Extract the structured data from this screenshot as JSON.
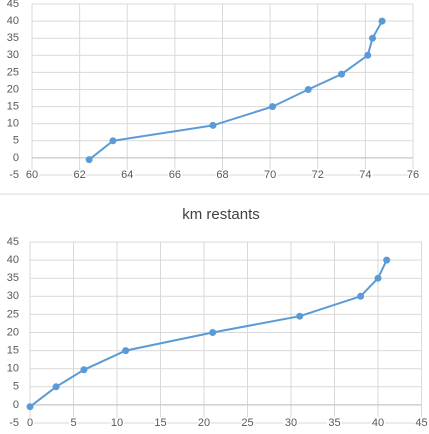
{
  "chart_data": [
    {
      "type": "line",
      "color": "#5b9bd5",
      "grid": true,
      "x": [
        62.4,
        63.4,
        67.6,
        70.1,
        71.6,
        73.0,
        74.1,
        74.3,
        74.7
      ],
      "values": [
        -0.5,
        5,
        9.5,
        15,
        20,
        24.5,
        30,
        35,
        40
      ],
      "xlim": [
        60,
        76
      ],
      "xticks": [
        60,
        62,
        64,
        66,
        68,
        70,
        72,
        74,
        76
      ],
      "ylim": [
        -5,
        45
      ],
      "yticks": [
        -5,
        0,
        5,
        10,
        15,
        20,
        25,
        30,
        35,
        40,
        45
      ]
    },
    {
      "type": "line",
      "title": "km restants",
      "color": "#5b9bd5",
      "grid": true,
      "x": [
        0,
        3,
        6.2,
        11,
        21,
        31,
        38,
        40,
        41
      ],
      "values": [
        -0.5,
        5,
        9.7,
        15,
        20,
        24.5,
        30,
        35,
        40
      ],
      "xlim": [
        0,
        45
      ],
      "xticks": [
        0,
        5,
        10,
        15,
        20,
        25,
        30,
        35,
        40,
        45
      ],
      "ylim": [
        -5,
        45
      ],
      "yticks": [
        -5,
        0,
        5,
        10,
        15,
        20,
        25,
        30,
        35,
        40,
        45
      ]
    }
  ]
}
